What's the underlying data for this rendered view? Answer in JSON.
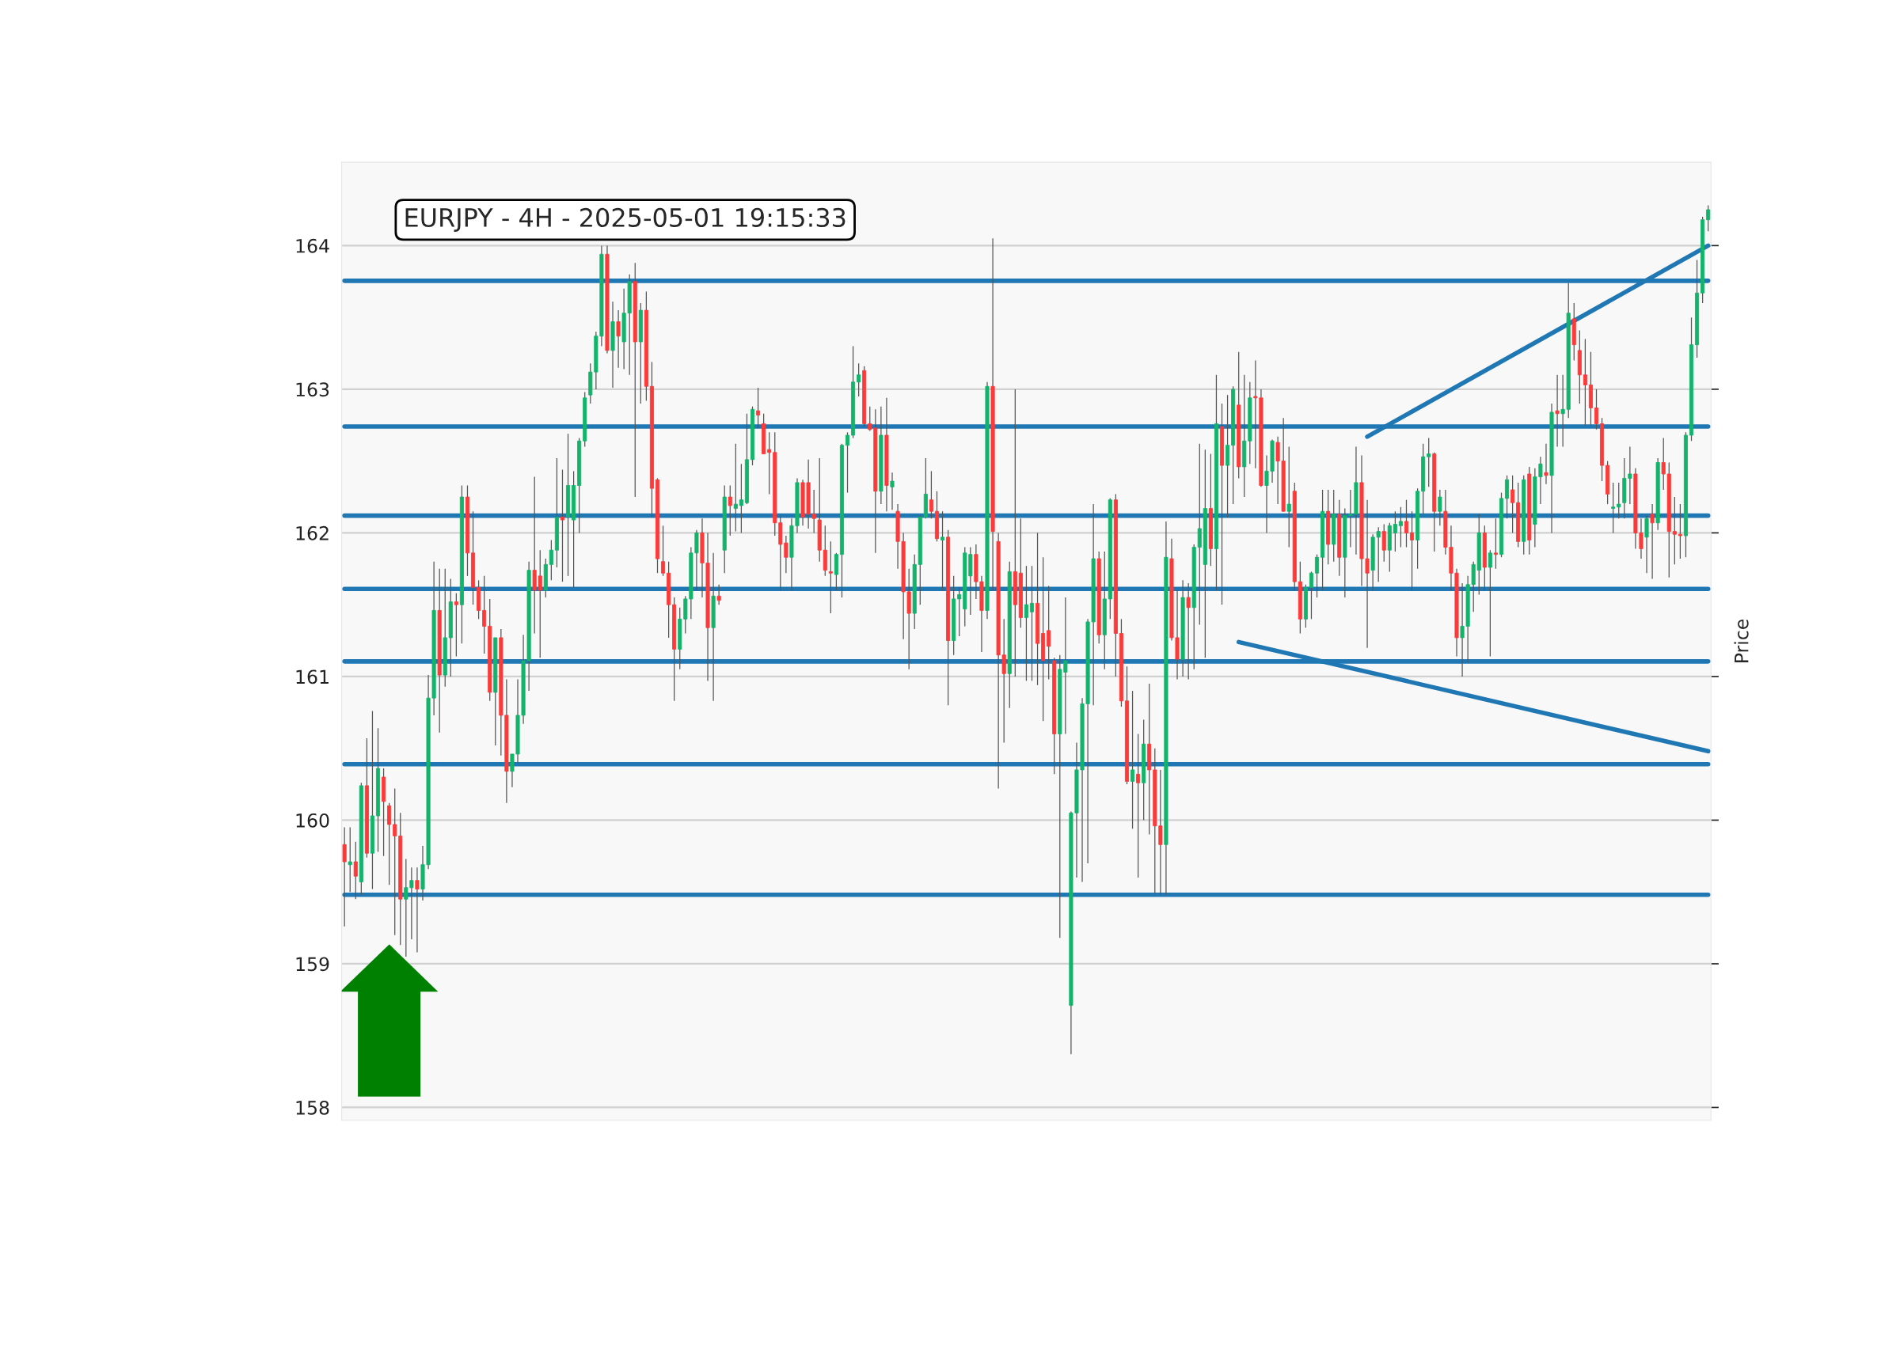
{
  "chart_data": {
    "type": "candlestick",
    "title": "EURJPY - 4H - 2025-05-01 19:15:33",
    "ylabel": "Price",
    "categories": [
      null,
      null,
      null,
      null,
      null,
      null,
      null,
      null,
      null,
      null,
      null,
      null,
      null,
      null,
      null,
      null,
      null,
      null,
      null,
      null,
      null,
      null,
      null,
      null,
      null,
      null,
      null,
      null,
      null,
      null,
      null,
      null,
      null,
      null,
      null,
      null,
      null,
      null,
      null,
      null,
      null,
      null,
      null,
      null,
      null,
      null,
      null,
      null,
      null,
      null,
      null,
      null,
      null,
      null,
      null,
      null,
      null,
      null,
      null,
      null,
      null,
      null,
      null,
      null,
      null,
      null,
      null,
      null,
      null,
      null,
      null,
      null,
      null,
      null,
      null,
      null,
      null,
      null,
      null,
      null,
      null,
      null,
      null,
      null,
      null,
      null,
      null,
      null,
      null,
      null,
      null,
      null,
      null,
      null,
      null,
      null,
      null,
      null,
      null,
      null,
      null,
      null,
      null,
      null,
      null,
      null,
      null,
      null,
      null,
      null,
      null,
      null,
      null,
      null,
      null,
      null,
      null,
      null,
      null,
      null,
      null,
      null,
      null,
      null,
      null,
      null,
      null,
      null,
      null,
      null,
      null,
      null,
      null,
      null,
      null,
      null,
      null,
      null,
      null,
      null,
      null,
      null,
      null,
      null,
      null,
      null,
      null,
      null,
      null,
      null,
      null,
      null,
      null,
      null,
      null,
      null,
      null,
      null,
      null,
      null,
      null,
      null,
      null,
      null,
      null,
      null,
      null,
      null,
      null,
      null,
      null,
      null,
      null,
      null,
      null,
      null,
      null,
      null,
      null,
      null,
      null,
      null,
      null,
      null,
      null,
      null,
      null,
      null,
      null,
      null,
      null,
      null,
      null,
      null,
      null,
      null,
      null,
      null,
      null,
      null,
      null,
      null,
      null,
      null,
      null,
      null,
      null,
      null,
      null,
      null,
      null,
      null,
      null,
      null,
      null,
      null,
      null,
      null,
      null,
      null,
      null,
      null,
      null,
      null,
      null,
      null,
      null,
      null,
      null,
      null,
      null,
      null,
      null,
      null,
      null,
      null,
      null,
      null,
      null,
      null,
      null,
      null,
      null,
      null,
      null
    ],
    "ohlc": [
      [
        159.83,
        159.95,
        159.26,
        159.71
      ],
      [
        159.69,
        159.95,
        159.5,
        159.71
      ],
      [
        159.71,
        159.85,
        159.45,
        159.61
      ],
      [
        159.57,
        160.26,
        159.48,
        160.24
      ],
      [
        160.24,
        160.57,
        159.74,
        159.77
      ],
      [
        159.77,
        160.76,
        159.52,
        160.03
      ],
      [
        160.03,
        160.64,
        159.78,
        160.36
      ],
      [
        160.3,
        160.36,
        159.75,
        160.13
      ],
      [
        160.1,
        160.12,
        159.55,
        159.97
      ],
      [
        159.97,
        160.22,
        159.2,
        159.89
      ],
      [
        159.89,
        160.05,
        159.13,
        159.45
      ],
      [
        159.45,
        159.73,
        159.05,
        159.53
      ],
      [
        159.53,
        159.67,
        159.17,
        159.58
      ],
      [
        159.58,
        159.67,
        159.08,
        159.52
      ],
      [
        159.52,
        159.82,
        159.44,
        159.69
      ],
      [
        159.69,
        161.01,
        159.66,
        160.85
      ],
      [
        160.85,
        161.8,
        160.73,
        161.46
      ],
      [
        161.46,
        161.75,
        160.61,
        161.01
      ],
      [
        161.01,
        161.75,
        160.93,
        161.27
      ],
      [
        161.27,
        161.68,
        161.0,
        161.52
      ],
      [
        161.52,
        161.58,
        161.14,
        161.5
      ],
      [
        161.5,
        162.33,
        161.23,
        162.25
      ],
      [
        162.25,
        162.33,
        161.7,
        161.86
      ],
      [
        161.86,
        162.15,
        161.5,
        161.62
      ],
      [
        161.62,
        161.67,
        161.4,
        161.46
      ],
      [
        161.46,
        161.7,
        161.16,
        161.35
      ],
      [
        161.35,
        161.54,
        160.83,
        160.89
      ],
      [
        160.89,
        161.27,
        160.52,
        161.27
      ],
      [
        161.27,
        161.33,
        160.45,
        160.73
      ],
      [
        160.73,
        160.98,
        160.12,
        160.34
      ],
      [
        160.34,
        160.46,
        160.23,
        160.46
      ],
      [
        160.46,
        160.98,
        160.4,
        160.73
      ],
      [
        160.73,
        161.29,
        160.67,
        161.11
      ],
      [
        161.11,
        161.8,
        160.9,
        161.74
      ],
      [
        161.74,
        162.39,
        161.3,
        161.6
      ],
      [
        161.7,
        161.88,
        161.13,
        161.6
      ],
      [
        161.6,
        161.82,
        161.55,
        161.78
      ],
      [
        161.78,
        161.95,
        161.67,
        161.88
      ],
      [
        161.88,
        162.52,
        161.76,
        162.11
      ],
      [
        162.11,
        162.44,
        161.66,
        162.09
      ],
      [
        162.11,
        162.69,
        161.7,
        162.33
      ],
      [
        162.09,
        162.43,
        161.62,
        162.33
      ],
      [
        162.33,
        162.66,
        162.0,
        162.64
      ],
      [
        162.64,
        162.98,
        162.6,
        162.94
      ],
      [
        162.96,
        163.18,
        162.9,
        163.12
      ],
      [
        163.12,
        163.4,
        163.0,
        163.37
      ],
      [
        163.37,
        164.0,
        163.3,
        163.94
      ],
      [
        163.94,
        164.0,
        163.25,
        163.27
      ],
      [
        163.27,
        163.61,
        163.01,
        163.47
      ],
      [
        163.47,
        163.55,
        163.15,
        163.37
      ],
      [
        163.33,
        163.7,
        163.14,
        163.53
      ],
      [
        163.53,
        163.8,
        163.1,
        163.75
      ],
      [
        163.75,
        163.88,
        162.25,
        163.33
      ],
      [
        163.33,
        163.6,
        162.9,
        163.55
      ],
      [
        163.55,
        163.68,
        162.92,
        163.02
      ],
      [
        163.02,
        163.19,
        162.11,
        162.31
      ],
      [
        162.37,
        162.38,
        161.72,
        161.82
      ],
      [
        161.8,
        162.05,
        161.7,
        161.72
      ],
      [
        161.72,
        161.8,
        161.27,
        161.5
      ],
      [
        161.5,
        161.55,
        160.83,
        161.19
      ],
      [
        161.19,
        161.48,
        161.05,
        161.4
      ],
      [
        161.4,
        161.56,
        161.3,
        161.54
      ],
      [
        161.54,
        161.9,
        161.4,
        161.86
      ],
      [
        161.86,
        162.02,
        161.6,
        162.0
      ],
      [
        162.0,
        162.1,
        161.55,
        161.79
      ],
      [
        161.79,
        162.0,
        160.97,
        161.34
      ],
      [
        161.34,
        161.86,
        160.83,
        161.56
      ],
      [
        161.56,
        161.64,
        161.5,
        161.53
      ],
      [
        161.88,
        162.33,
        161.72,
        162.25
      ],
      [
        162.25,
        162.33,
        161.98,
        162.19
      ],
      [
        162.17,
        162.62,
        162.01,
        162.2
      ],
      [
        162.19,
        162.48,
        162.0,
        162.23
      ],
      [
        162.21,
        162.83,
        162.2,
        162.51
      ],
      [
        162.51,
        162.88,
        162.47,
        162.86
      ],
      [
        162.85,
        163.01,
        162.73,
        162.82
      ],
      [
        162.76,
        162.83,
        162.55,
        162.55
      ],
      [
        162.58,
        162.7,
        162.27,
        162.56
      ],
      [
        162.56,
        162.7,
        161.98,
        162.07
      ],
      [
        162.07,
        162.12,
        161.6,
        161.92
      ],
      [
        161.93,
        161.98,
        161.72,
        161.83
      ],
      [
        161.83,
        162.1,
        161.6,
        162.05
      ],
      [
        162.05,
        162.38,
        162.0,
        162.35
      ],
      [
        162.35,
        162.37,
        162.05,
        162.11
      ],
      [
        162.35,
        162.51,
        162.03,
        162.13
      ],
      [
        162.13,
        162.3,
        162.0,
        162.1
      ],
      [
        162.09,
        162.52,
        161.8,
        161.88
      ],
      [
        161.88,
        162.05,
        161.7,
        161.74
      ],
      [
        161.73,
        161.94,
        161.44,
        161.72
      ],
      [
        161.71,
        161.86,
        161.6,
        161.85
      ],
      [
        161.85,
        162.62,
        161.55,
        162.61
      ],
      [
        162.61,
        162.7,
        162.28,
        162.68
      ],
      [
        162.68,
        163.3,
        162.66,
        163.05
      ],
      [
        163.05,
        163.18,
        162.95,
        163.1
      ],
      [
        163.13,
        163.16,
        162.74,
        162.76
      ],
      [
        162.76,
        162.88,
        162.71,
        162.72
      ],
      [
        162.73,
        162.86,
        161.86,
        162.29
      ],
      [
        162.29,
        162.88,
        162.2,
        162.68
      ],
      [
        162.68,
        162.94,
        162.15,
        162.33
      ],
      [
        162.32,
        162.42,
        162.16,
        162.36
      ],
      [
        162.15,
        162.2,
        161.75,
        161.94
      ],
      [
        161.94,
        162.0,
        161.26,
        161.59
      ],
      [
        161.59,
        161.75,
        161.05,
        161.44
      ],
      [
        161.44,
        161.85,
        161.33,
        161.78
      ],
      [
        161.78,
        162.12,
        161.5,
        162.11
      ],
      [
        162.11,
        162.52,
        162.1,
        162.27
      ],
      [
        162.23,
        162.43,
        162.1,
        162.15
      ],
      [
        162.15,
        162.29,
        161.94,
        161.96
      ],
      [
        161.95,
        162.15,
        161.6,
        161.97
      ],
      [
        161.97,
        162.02,
        160.8,
        161.25
      ],
      [
        161.25,
        161.7,
        161.15,
        161.54
      ],
      [
        161.54,
        161.62,
        161.28,
        161.57
      ],
      [
        161.47,
        161.9,
        161.35,
        161.86
      ],
      [
        161.7,
        161.9,
        161.43,
        161.85
      ],
      [
        161.85,
        161.92,
        161.54,
        161.66
      ],
      [
        161.66,
        161.7,
        161.17,
        161.46
      ],
      [
        161.46,
        163.05,
        161.4,
        163.02
      ],
      [
        163.02,
        164.05,
        161.6,
        162.01
      ],
      [
        161.94,
        162.0,
        160.22,
        161.15
      ],
      [
        161.15,
        161.4,
        160.54,
        161.02
      ],
      [
        161.02,
        161.8,
        160.78,
        161.73
      ],
      [
        161.73,
        163.0,
        161.0,
        161.5
      ],
      [
        161.72,
        162.1,
        161.34,
        161.41
      ],
      [
        161.41,
        161.77,
        160.97,
        161.5
      ],
      [
        161.45,
        161.77,
        160.97,
        161.51
      ],
      [
        161.51,
        162.0,
        160.94,
        161.23
      ],
      [
        161.3,
        161.83,
        160.69,
        161.11
      ],
      [
        161.32,
        161.63,
        160.98,
        161.21
      ],
      [
        161.11,
        161.13,
        160.32,
        160.6
      ],
      [
        160.6,
        161.15,
        159.18,
        161.05
      ],
      [
        161.03,
        161.55,
        160.6,
        161.11
      ],
      [
        158.71,
        160.06,
        158.37,
        160.05
      ],
      [
        160.05,
        160.54,
        159.6,
        160.35
      ],
      [
        160.35,
        160.85,
        159.57,
        160.81
      ],
      [
        160.81,
        161.4,
        159.7,
        161.38
      ],
      [
        161.38,
        162.2,
        160.8,
        161.82
      ],
      [
        161.82,
        161.87,
        161.23,
        161.29
      ],
      [
        161.29,
        161.87,
        161.05,
        161.54
      ],
      [
        161.54,
        162.24,
        161.4,
        162.23
      ],
      [
        162.23,
        162.27,
        161.0,
        161.3
      ],
      [
        161.3,
        161.4,
        160.79,
        160.83
      ],
      [
        160.83,
        161.07,
        160.25,
        160.27
      ],
      [
        160.27,
        160.9,
        159.94,
        160.35
      ],
      [
        160.32,
        160.6,
        159.6,
        160.26
      ],
      [
        160.26,
        160.7,
        160.0,
        160.53
      ],
      [
        160.53,
        160.95,
        159.9,
        160.35
      ],
      [
        160.35,
        160.5,
        159.49,
        159.96
      ],
      [
        159.96,
        160.35,
        159.48,
        159.83
      ],
      [
        159.83,
        162.08,
        159.48,
        161.83
      ],
      [
        161.82,
        161.96,
        161.25,
        161.27
      ],
      [
        161.27,
        161.6,
        160.98,
        161.12
      ],
      [
        161.12,
        161.67,
        161.0,
        161.55
      ],
      [
        161.55,
        161.65,
        160.98,
        161.48
      ],
      [
        161.48,
        161.92,
        161.05,
        161.9
      ],
      [
        161.9,
        162.62,
        161.36,
        162.03
      ],
      [
        161.78,
        162.58,
        161.13,
        162.17
      ],
      [
        162.17,
        162.55,
        161.77,
        161.89
      ],
      [
        161.89,
        163.1,
        161.6,
        162.76
      ],
      [
        162.74,
        162.9,
        161.5,
        162.47
      ],
      [
        162.47,
        162.96,
        162.11,
        162.61
      ],
      [
        162.61,
        163.02,
        162.2,
        163.0
      ],
      [
        162.89,
        163.26,
        162.38,
        162.46
      ],
      [
        162.46,
        163.1,
        162.25,
        162.64
      ],
      [
        162.64,
        163.05,
        162.48,
        162.94
      ],
      [
        162.95,
        163.2,
        162.45,
        162.94
      ],
      [
        162.94,
        163.0,
        162.32,
        162.33
      ],
      [
        162.33,
        162.54,
        162.0,
        162.43
      ],
      [
        162.43,
        162.65,
        162.35,
        162.64
      ],
      [
        162.63,
        162.67,
        162.2,
        162.5
      ],
      [
        162.5,
        162.8,
        162.15,
        162.15
      ],
      [
        162.15,
        162.6,
        161.9,
        162.2
      ],
      [
        162.29,
        162.35,
        161.6,
        161.66
      ],
      [
        161.66,
        161.8,
        161.3,
        161.4
      ],
      [
        161.4,
        161.64,
        161.34,
        161.62
      ],
      [
        161.62,
        161.73,
        161.4,
        161.72
      ],
      [
        161.72,
        161.85,
        161.55,
        161.83
      ],
      [
        161.83,
        162.3,
        161.6,
        162.15
      ],
      [
        162.15,
        162.3,
        161.78,
        161.92
      ],
      [
        161.92,
        162.3,
        161.8,
        162.13
      ],
      [
        162.13,
        162.23,
        161.7,
        161.83
      ],
      [
        161.83,
        162.17,
        161.55,
        162.12
      ],
      [
        162.12,
        162.3,
        161.9,
        162.13
      ],
      [
        162.13,
        162.6,
        161.85,
        162.35
      ],
      [
        162.35,
        162.54,
        161.63,
        161.82
      ],
      [
        161.82,
        162.23,
        161.2,
        161.72
      ],
      [
        161.74,
        161.99,
        161.6,
        161.97
      ],
      [
        161.97,
        162.04,
        161.66,
        162.01
      ],
      [
        162.01,
        162.06,
        161.8,
        161.88
      ],
      [
        161.88,
        162.07,
        161.73,
        162.05
      ],
      [
        162.0,
        162.15,
        161.87,
        162.06
      ],
      [
        162.05,
        162.18,
        161.9,
        162.08
      ],
      [
        162.08,
        162.23,
        161.9,
        162.0
      ],
      [
        162.0,
        162.15,
        161.6,
        161.95
      ],
      [
        161.95,
        162.31,
        161.75,
        162.29
      ],
      [
        162.29,
        162.62,
        162.13,
        162.53
      ],
      [
        162.53,
        162.66,
        162.32,
        162.55
      ],
      [
        162.55,
        162.56,
        161.87,
        162.15
      ],
      [
        162.15,
        162.3,
        162.05,
        162.25
      ],
      [
        162.15,
        162.3,
        161.85,
        161.9
      ],
      [
        161.9,
        162.05,
        161.6,
        161.72
      ],
      [
        161.72,
        161.75,
        161.14,
        161.27
      ],
      [
        161.27,
        161.65,
        161.0,
        161.35
      ],
      [
        161.35,
        161.7,
        161.1,
        161.64
      ],
      [
        161.64,
        161.8,
        161.45,
        161.78
      ],
      [
        161.74,
        162.13,
        161.57,
        162.0
      ],
      [
        162.0,
        162.05,
        161.6,
        161.76
      ],
      [
        161.76,
        161.88,
        161.14,
        161.86
      ],
      [
        161.86,
        162.1,
        161.75,
        161.85
      ],
      [
        161.85,
        162.28,
        161.83,
        162.24
      ],
      [
        162.24,
        162.4,
        162.1,
        162.37
      ],
      [
        162.3,
        162.4,
        162.0,
        162.21
      ],
      [
        162.21,
        162.35,
        161.9,
        161.94
      ],
      [
        161.94,
        162.4,
        161.85,
        162.37
      ],
      [
        162.41,
        162.46,
        161.85,
        161.95
      ],
      [
        162.06,
        162.45,
        161.9,
        162.39
      ],
      [
        162.39,
        162.53,
        162.2,
        162.48
      ],
      [
        162.42,
        162.62,
        162.34,
        162.4
      ],
      [
        162.4,
        162.9,
        162.0,
        162.84
      ],
      [
        162.85,
        163.1,
        162.6,
        162.83
      ],
      [
        162.83,
        163.1,
        162.6,
        162.86
      ],
      [
        162.86,
        163.74,
        162.8,
        163.53
      ],
      [
        163.49,
        163.6,
        163.2,
        163.31
      ],
      [
        163.27,
        163.41,
        162.9,
        163.1
      ],
      [
        163.1,
        163.35,
        162.75,
        163.03
      ],
      [
        163.03,
        163.26,
        162.75,
        162.87
      ],
      [
        162.87,
        163.0,
        162.72,
        162.76
      ],
      [
        162.76,
        162.8,
        162.36,
        162.47
      ],
      [
        162.47,
        162.5,
        162.2,
        162.27
      ],
      [
        162.17,
        162.35,
        162.0,
        162.18
      ],
      [
        162.18,
        162.35,
        162.1,
        162.2
      ],
      [
        162.21,
        162.52,
        162.1,
        162.38
      ],
      [
        162.38,
        162.6,
        162.2,
        162.41
      ],
      [
        162.41,
        162.45,
        161.89,
        162.0
      ],
      [
        162.0,
        162.1,
        161.82,
        161.89
      ],
      [
        161.97,
        162.12,
        161.72,
        162.1
      ],
      [
        162.13,
        162.2,
        161.68,
        162.07
      ],
      [
        162.07,
        162.52,
        162.02,
        162.49
      ],
      [
        162.49,
        162.66,
        162.3,
        162.41
      ],
      [
        162.41,
        162.49,
        161.69,
        162.01
      ],
      [
        162.01,
        162.25,
        161.78,
        161.99
      ],
      [
        161.99,
        162.2,
        161.82,
        161.98
      ],
      [
        161.98,
        162.7,
        161.83,
        162.68
      ],
      [
        162.68,
        163.5,
        162.64,
        163.31
      ],
      [
        163.31,
        163.9,
        163.22,
        163.67
      ],
      [
        163.67,
        164.2,
        163.6,
        164.18
      ],
      [
        164.18,
        164.28,
        164.1,
        164.25
      ]
    ],
    "series": [
      {
        "type": "line",
        "color": "#1f77b4",
        "values": [
          null,
          null,
          null,
          null,
          null,
          null,
          null,
          null,
          null,
          null,
          null,
          null,
          null,
          null,
          null,
          null,
          null,
          null,
          null,
          null,
          null,
          null,
          null,
          null,
          null,
          null,
          null,
          null,
          null,
          null,
          null,
          null,
          null,
          null,
          null,
          null,
          null,
          null,
          null,
          null,
          null,
          null,
          null,
          null,
          null,
          null,
          null,
          null,
          null,
          null,
          null,
          null,
          null,
          null,
          null,
          null,
          null,
          null,
          null,
          null,
          null,
          null,
          null,
          null,
          null,
          null,
          null,
          null,
          null,
          null,
          null,
          null,
          null,
          null,
          null,
          null,
          null,
          null,
          null,
          null,
          null,
          null,
          null,
          null,
          null,
          null,
          null,
          null,
          null,
          null,
          null,
          null,
          null,
          null,
          null,
          null,
          null,
          null,
          null,
          null,
          null,
          null,
          null,
          null,
          null,
          null,
          null,
          null,
          null,
          null,
          null,
          null,
          null,
          null,
          null,
          null,
          null,
          null,
          null,
          null,
          null,
          null,
          null,
          null,
          null,
          null,
          null,
          null,
          null,
          null,
          null,
          null,
          null,
          null,
          null,
          null,
          null,
          null,
          null,
          null,
          null,
          null,
          null,
          null,
          null,
          null,
          null,
          null,
          null,
          null,
          null,
          null,
          null,
          null,
          null,
          null,
          null,
          null,
          null,
          null,
          null,
          null,
          null,
          null,
          null,
          null,
          null,
          null,
          null,
          null,
          null,
          null,
          null,
          null,
          null,
          null,
          null,
          null,
          null,
          null,
          null,
          null,
          null,
          162.67,
          null,
          null,
          null,
          null,
          null,
          null,
          null,
          null,
          null,
          null,
          null,
          null,
          null,
          null,
          null,
          null,
          null,
          null,
          null,
          null,
          null,
          null,
          null,
          null,
          null,
          null,
          null,
          null,
          null,
          null,
          null,
          null,
          null,
          null,
          null,
          null,
          null,
          null,
          null,
          null,
          null,
          null,
          null,
          null,
          null,
          null,
          null,
          null,
          null,
          null,
          null,
          null,
          null,
          null,
          null,
          null,
          null,
          null,
          null,
          null,
          164.0
        ]
      },
      {
        "type": "line",
        "color": "#1f77b4",
        "values": [
          null,
          null,
          null,
          null,
          null,
          null,
          null,
          null,
          null,
          null,
          null,
          null,
          null,
          null,
          null,
          null,
          null,
          null,
          null,
          null,
          null,
          null,
          null,
          null,
          null,
          null,
          null,
          null,
          null,
          null,
          null,
          null,
          null,
          null,
          null,
          null,
          null,
          null,
          null,
          null,
          null,
          null,
          null,
          null,
          null,
          null,
          null,
          null,
          null,
          null,
          null,
          null,
          null,
          null,
          null,
          null,
          null,
          null,
          null,
          null,
          null,
          null,
          null,
          null,
          null,
          null,
          null,
          null,
          null,
          null,
          null,
          null,
          null,
          null,
          null,
          null,
          null,
          null,
          null,
          null,
          null,
          null,
          null,
          null,
          null,
          null,
          null,
          null,
          null,
          null,
          null,
          null,
          null,
          null,
          null,
          null,
          null,
          null,
          null,
          null,
          null,
          null,
          null,
          null,
          null,
          null,
          null,
          null,
          null,
          null,
          null,
          null,
          null,
          null,
          null,
          null,
          null,
          null,
          null,
          null,
          null,
          null,
          null,
          null,
          null,
          null,
          null,
          null,
          null,
          null,
          null,
          null,
          null,
          null,
          null,
          null,
          null,
          null,
          null,
          null,
          null,
          null,
          null,
          null,
          null,
          null,
          null,
          null,
          null,
          null,
          null,
          null,
          null,
          null,
          null,
          null,
          null,
          null,
          null,
          null,
          161.24,
          null,
          null,
          null,
          null,
          null,
          null,
          null,
          null,
          null,
          null,
          null,
          null,
          null,
          null,
          null,
          null,
          null,
          null,
          null,
          null,
          null,
          null,
          null,
          null,
          null,
          null,
          null,
          null,
          null,
          null,
          null,
          null,
          null,
          null,
          null,
          null,
          null,
          null,
          null,
          null,
          null,
          null,
          null,
          null,
          null,
          null,
          null,
          null,
          null,
          null,
          null,
          null,
          null,
          null,
          null,
          null,
          null,
          null,
          null,
          null,
          null,
          null,
          null,
          null,
          null,
          null,
          null,
          null,
          null,
          null,
          null,
          null,
          null,
          null,
          null,
          null,
          null,
          null,
          null,
          null,
          null,
          null,
          null,
          160.48
        ]
      }
    ],
    "ref_lines": [
      {
        "axis": "y",
        "value": 163.755,
        "color": "#1f77b4"
      },
      {
        "axis": "y",
        "value": 162.74,
        "color": "#1f77b4"
      },
      {
        "axis": "y",
        "value": 162.12,
        "color": "#1f77b4"
      },
      {
        "axis": "y",
        "value": 161.61,
        "color": "#1f77b4"
      },
      {
        "axis": "y",
        "value": 161.105,
        "color": "#1f77b4"
      },
      {
        "axis": "y",
        "value": 160.39,
        "color": "#1f77b4"
      },
      {
        "axis": "y",
        "value": 159.48,
        "color": "#1f77b4"
      }
    ],
    "ylim": [
      157.91,
      164.58
    ],
    "yticks": [
      158,
      159,
      160,
      161,
      162,
      163,
      164
    ],
    "grid": "y",
    "tick_labels": "y"
  }
}
